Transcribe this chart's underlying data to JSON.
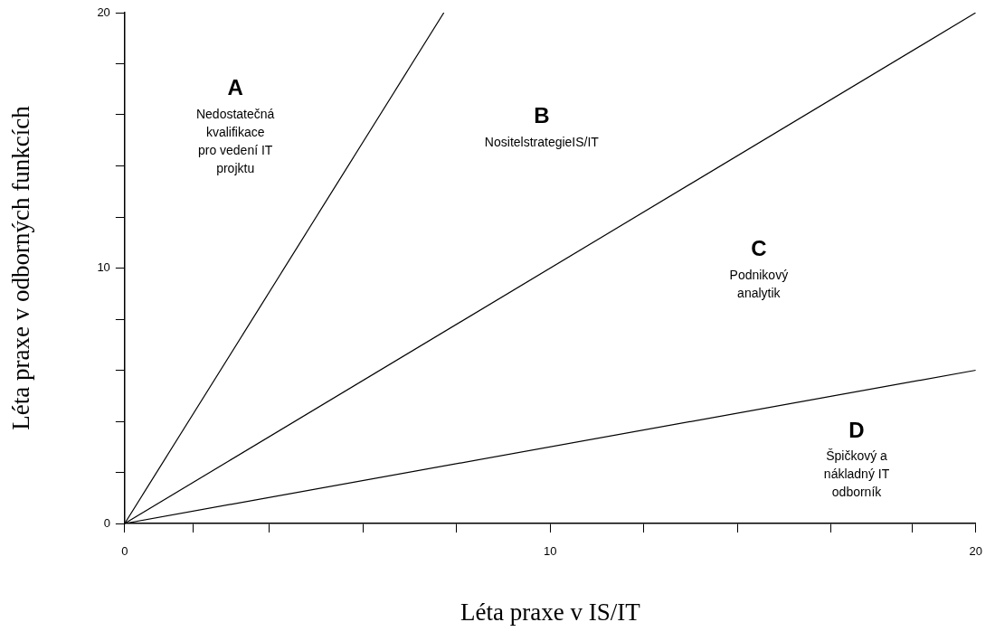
{
  "chart_data": {
    "type": "line",
    "xlabel": "Léta praxe v IS/IT",
    "ylabel": "Léta praxe v odborných funkcích",
    "series": [
      {
        "color": "#000000",
        "x": [
          0,
          7.5
        ],
        "values": [
          0,
          20
        ]
      },
      {
        "color": "#000000",
        "x": [
          0,
          20
        ],
        "values": [
          0,
          20
        ]
      },
      {
        "color": "#000000",
        "x": [
          0,
          20
        ],
        "values": [
          0,
          6
        ]
      }
    ],
    "xlim": [
      0,
      20
    ],
    "ylim": [
      0,
      20
    ],
    "xticks": [
      0,
      {
        "value": 1.6,
        "label": null
      },
      {
        "value": 3.4,
        "label": null
      },
      {
        "value": 5.6,
        "label": null
      },
      {
        "value": 7.8,
        "label": null
      },
      10,
      {
        "value": 12.2,
        "label": null
      },
      {
        "value": 14.4,
        "label": null
      },
      {
        "value": 16.6,
        "label": null
      },
      {
        "value": 18.5,
        "label": null
      },
      20
    ],
    "yticks": [
      0,
      {
        "value": 2,
        "label": null
      },
      {
        "value": 4,
        "label": null
      },
      {
        "value": 6,
        "label": null
      },
      {
        "value": 8,
        "label": null
      },
      10,
      {
        "value": 12,
        "label": null
      },
      {
        "value": 14,
        "label": null
      },
      {
        "value": 16,
        "label": null
      },
      {
        "value": 18,
        "label": null
      },
      20
    ],
    "annotations": [
      "A\nNedostatečná\nkvalifikace\npro vedení IT\nprojktu",
      "B\nNositelstrategieIS/IT",
      "C\nPodnikový\nanalytik",
      "D\nŠpičkový a\nnákladný IT\nodborník"
    ],
    "grid": false,
    "legend": false,
    "marker": "none",
    "line_style": "solid"
  }
}
